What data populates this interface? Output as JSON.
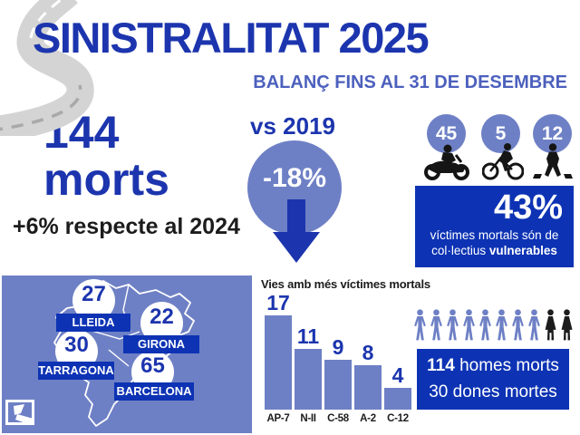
{
  "colors": {
    "primary_blue": "#1c35ae",
    "periwinkle": "#6e80c5",
    "deep_blue": "#0d33b4",
    "subtitle_blue": "#4c60bd",
    "black": "#1c1c1c",
    "road_gray": "#d4d4d4"
  },
  "header": {
    "title": "SINISTRALITAT 2025",
    "subtitle": "BALANÇ FINS AL 31 DE DESEMBRE"
  },
  "totals": {
    "deaths": "144",
    "deaths_label": "morts",
    "vs_prev_year": "+6% respecte al 2024"
  },
  "vs2019": {
    "label": "vs 2019",
    "change": "-18%"
  },
  "vulnerable": {
    "items": [
      {
        "icon": "motorcycle-icon",
        "value": "45"
      },
      {
        "icon": "bicycle-icon",
        "value": "5"
      },
      {
        "icon": "pedestrian-icon",
        "value": "12"
      }
    ],
    "percent": "43%",
    "desc_line1": "víctimes mortals són de",
    "desc_line2_prefix": "col·lectius",
    "desc_line2_bold": "vulnerables"
  },
  "map": {
    "provinces": [
      {
        "name": "LLEIDA",
        "value": "27"
      },
      {
        "name": "GIRONA",
        "value": "22"
      },
      {
        "name": "TARRAGONA",
        "value": "30"
      },
      {
        "name": "BARCELONA",
        "value": "65"
      }
    ]
  },
  "chart_data": {
    "type": "bar",
    "title": "Vies amb més víctimes mortals",
    "categories": [
      "AP-7",
      "N-II",
      "C-58",
      "A-2",
      "C-12"
    ],
    "values": [
      17,
      11,
      9,
      8,
      4
    ],
    "xlabel": "",
    "ylabel": "",
    "ylim": [
      0,
      17
    ],
    "grid": false,
    "legend": false,
    "bar_color": "#6e80c5",
    "value_color": "#1c35ae"
  },
  "gender": {
    "male_icons": 8,
    "female_icons": 2,
    "male_color": "#6e80c5",
    "female_color": "#1c1c1c",
    "line1_bold": "114",
    "line1_rest": "homes morts",
    "line2": "30 dones mortes"
  }
}
